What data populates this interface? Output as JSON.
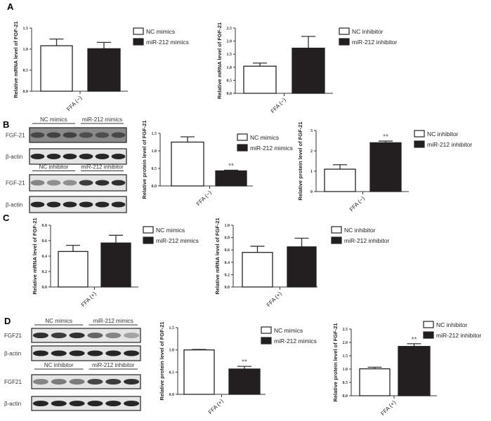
{
  "panels": {
    "A": "A",
    "B": "B",
    "C": "C",
    "D": "D"
  },
  "blots": {
    "B": {
      "groups_top": [
        "NC mimics",
        "miR-212 mimics"
      ],
      "groups_bottom": [
        "NC inhibitor",
        "miR-212 inhibitor"
      ],
      "rows": [
        "FGF-21",
        "β-actin",
        "FGF-21",
        "β-actin"
      ]
    },
    "D": {
      "groups_top": [
        "NC mimics",
        "miR-212 mimics"
      ],
      "groups_bottom": [
        "NC inhibitor",
        "miR-212 inhibitor"
      ],
      "rows": [
        "FGF21",
        "β-actin",
        "FGF21",
        "β-actin"
      ]
    }
  },
  "chart_data": [
    {
      "type": "bar",
      "panel": "A",
      "ylabel": "Relative mRNA level of FGF-21",
      "categories": [
        "FFA (−)"
      ],
      "ylim": [
        0,
        1.5
      ],
      "yticks": [
        "0.0",
        "0.5",
        "1.0",
        "1.5"
      ],
      "series": [
        {
          "name": "NC mimics",
          "values": [
            1.08
          ],
          "error": [
            0.16
          ],
          "color": "#ffffff"
        },
        {
          "name": "miR-212 mimics",
          "values": [
            1.01
          ],
          "error": [
            0.15
          ],
          "color": "#231f20"
        }
      ],
      "annotations": [
        "",
        ""
      ]
    },
    {
      "type": "bar",
      "panel": "A",
      "ylabel": "Relative mRNA level of FGF-21",
      "categories": [
        "FFA (−)"
      ],
      "ylim": [
        0,
        2.5
      ],
      "yticks": [
        "0.0",
        "0.5",
        "1.0",
        "1.5",
        "2.0",
        "2.5"
      ],
      "series": [
        {
          "name": "NC inhibitor",
          "values": [
            1.04
          ],
          "error": [
            0.12
          ],
          "color": "#ffffff"
        },
        {
          "name": "miR-212 inhibitor",
          "values": [
            1.73
          ],
          "error": [
            0.45
          ],
          "color": "#231f20"
        }
      ],
      "annotations": [
        "",
        ""
      ]
    },
    {
      "type": "bar",
      "panel": "B",
      "ylabel": "Relative protein level of FGF-21",
      "categories": [
        "FFA (−)"
      ],
      "ylim": [
        0,
        1.5
      ],
      "yticks": [
        "0.0",
        "0.5",
        "1.0",
        "1.5"
      ],
      "series": [
        {
          "name": "NC mimics",
          "values": [
            1.25
          ],
          "error": [
            0.15
          ],
          "color": "#ffffff"
        },
        {
          "name": "miR-212 mimics",
          "values": [
            0.43
          ],
          "error": [
            0.02
          ],
          "color": "#231f20"
        }
      ],
      "annotations": [
        "",
        "**"
      ]
    },
    {
      "type": "bar",
      "panel": "B",
      "ylabel": "Relative protein level of FGF-21",
      "categories": [
        "FFA (−)"
      ],
      "ylim": [
        0,
        3
      ],
      "yticks": [
        "0",
        "1",
        "2",
        "3"
      ],
      "series": [
        {
          "name": "NC inhibitor",
          "values": [
            1.1
          ],
          "error": [
            0.22
          ],
          "color": "#ffffff"
        },
        {
          "name": "miR-212 inhibitor",
          "values": [
            2.4
          ],
          "error": [
            0.08
          ],
          "color": "#231f20"
        }
      ],
      "annotations": [
        "",
        "**"
      ]
    },
    {
      "type": "bar",
      "panel": "C",
      "ylabel": "Relative mRNA level of FGF-21",
      "categories": [
        "FFA (+)"
      ],
      "ylim": [
        0,
        0.8
      ],
      "yticks": [
        "0.0",
        "0.2",
        "0.4",
        "0.6",
        "0.8"
      ],
      "series": [
        {
          "name": "NC mimics",
          "values": [
            0.46
          ],
          "error": [
            0.08
          ],
          "color": "#ffffff"
        },
        {
          "name": "miR-212 mimics",
          "values": [
            0.57
          ],
          "error": [
            0.1
          ],
          "color": "#231f20"
        }
      ],
      "annotations": [
        "",
        ""
      ]
    },
    {
      "type": "bar",
      "panel": "C",
      "ylabel": "Relative mRNA level of FGF-21",
      "categories": [
        "FFA (+)"
      ],
      "ylim": [
        0,
        1.0
      ],
      "yticks": [
        "0.0",
        "0.2",
        "0.4",
        "0.6",
        "0.8",
        "1.0"
      ],
      "series": [
        {
          "name": "NC inhibitor",
          "values": [
            0.56
          ],
          "error": [
            0.1
          ],
          "color": "#ffffff"
        },
        {
          "name": "miR-212 inhibitor",
          "values": [
            0.65
          ],
          "error": [
            0.14
          ],
          "color": "#231f20"
        }
      ],
      "annotations": [
        "",
        ""
      ]
    },
    {
      "type": "bar",
      "panel": "D",
      "ylabel": "Relative protein level of FGF-21",
      "categories": [
        "FFA (+)"
      ],
      "ylim": [
        0,
        1.5
      ],
      "yticks": [
        "0.0",
        "0.5",
        "1.0",
        "1.5"
      ],
      "series": [
        {
          "name": "NC mimics",
          "values": [
            1.0
          ],
          "error": [
            0.01
          ],
          "color": "#ffffff"
        },
        {
          "name": "miR-212 mimics",
          "values": [
            0.57
          ],
          "error": [
            0.06
          ],
          "color": "#231f20"
        }
      ],
      "annotations": [
        "",
        "**"
      ]
    },
    {
      "type": "bar",
      "panel": "D",
      "ylabel": "Relative protein level of FGF-21",
      "categories": [
        "FFA (+)"
      ],
      "ylim": [
        0,
        2.5
      ],
      "yticks": [
        "0.0",
        "0.5",
        "1.0",
        "1.5",
        "2.0",
        "2.5"
      ],
      "series": [
        {
          "name": "NC inhibitor",
          "values": [
            1.01
          ],
          "error": [
            0.06
          ],
          "color": "#ffffff"
        },
        {
          "name": "miR-212 inhibitor",
          "values": [
            1.85
          ],
          "error": [
            0.1
          ],
          "color": "#231f20"
        }
      ],
      "annotations": [
        "",
        "**"
      ]
    }
  ]
}
